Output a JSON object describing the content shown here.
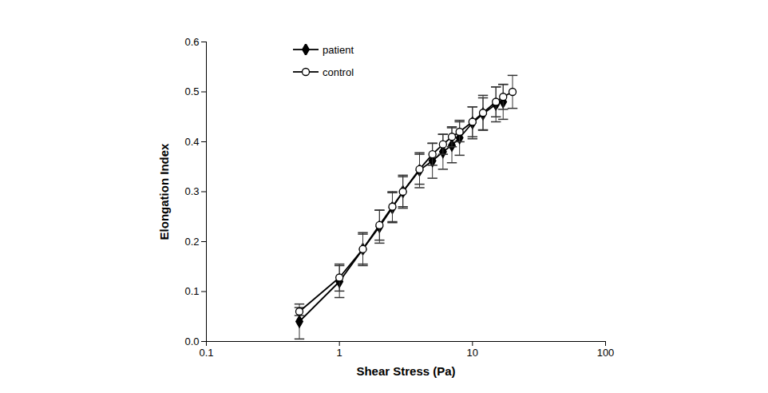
{
  "chart_data": {
    "type": "line",
    "x_label": "Shear Stress (Pa)",
    "y_label": "Elongation Index",
    "log": "x",
    "grid": false,
    "legend": "upper left",
    "xlim": [
      0.1,
      100
    ],
    "xticks": [
      0.1,
      1,
      10,
      100
    ],
    "ylim": [
      0,
      0.6
    ],
    "yticks": [
      {
        "value": 0,
        "label": "0.0"
      },
      0.1,
      0.2,
      0.3,
      0.4,
      0.5,
      0.6
    ],
    "x": [
      0.5,
      1,
      1.5,
      2,
      2.5,
      3,
      4,
      5,
      6,
      7,
      8,
      10,
      12,
      15,
      17,
      20
    ],
    "series": [
      {
        "name": "patient",
        "color": "#000000",
        "marker": "diamond",
        "line_style": "solid",
        "values": [
          0.04,
          0.12,
          0.185,
          0.23,
          0.268,
          0.3,
          0.343,
          0.362,
          0.38,
          0.393,
          0.408,
          0.438,
          0.456,
          0.475,
          0.48,
          null
        ],
        "errors": [
          0.035,
          0.032,
          0.033,
          0.033,
          0.03,
          0.03,
          0.035,
          0.035,
          0.035,
          0.035,
          0.035,
          0.032,
          0.032,
          0.035,
          0.035,
          null
        ]
      },
      {
        "name": "control",
        "color": "#000000",
        "marker": "open_circle",
        "line_style": "solid",
        "values": [
          0.06,
          0.128,
          0.185,
          0.233,
          0.27,
          0.3,
          0.345,
          0.375,
          0.395,
          0.41,
          0.42,
          0.44,
          0.458,
          0.48,
          0.49,
          0.5
        ],
        "errors": [
          0.008,
          0.027,
          0.03,
          0.03,
          0.03,
          0.033,
          0.03,
          0.022,
          0.02,
          0.02,
          0.02,
          0.03,
          0.035,
          0.03,
          0.025,
          0.033
        ]
      }
    ]
  }
}
